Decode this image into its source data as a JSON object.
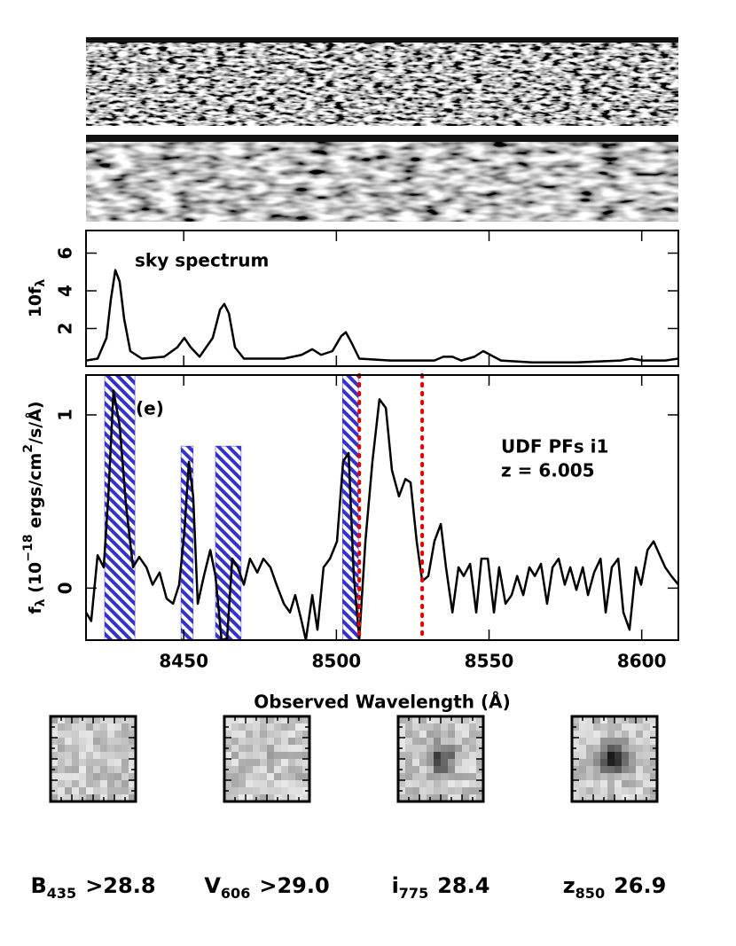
{
  "chart_data": [
    {
      "type": "line",
      "annotations": [
        {
          "text": "sky spectrum",
          "color": "#e00000"
        }
      ],
      "ylabel_parts": [
        {
          "text": "10f"
        },
        {
          "text": "λ",
          "sub": true
        }
      ],
      "x": [
        8418.0,
        8421.8,
        8424.7,
        8426.1,
        8427.6,
        8429.0,
        8430.5,
        8432.5,
        8436.3,
        8443.6,
        8447.9,
        8450.2,
        8452.3,
        8455.2,
        8459.5,
        8461.9,
        8463.3,
        8464.8,
        8466.8,
        8469.7,
        8482.8,
        8488.6,
        8492.1,
        8495.0,
        8498.7,
        8501.6,
        8503.1,
        8505.1,
        8507.5,
        8517.6,
        8532.1,
        8535.0,
        8538.0,
        8540.9,
        8545.2,
        8548.1,
        8550.4,
        8553.9,
        8564.1,
        8578.6,
        8593.1,
        8596.6,
        8600.4,
        8607.7,
        8612.0
      ],
      "values": [
        0.3,
        0.4,
        1.5,
        3.5,
        5.1,
        4.5,
        2.5,
        0.8,
        0.4,
        0.5,
        1.0,
        1.5,
        1.0,
        0.5,
        1.5,
        3.0,
        3.3,
        2.8,
        1.0,
        0.4,
        0.4,
        0.6,
        0.9,
        0.6,
        0.8,
        1.6,
        1.8,
        1.2,
        0.4,
        0.3,
        0.3,
        0.5,
        0.5,
        0.3,
        0.5,
        0.8,
        0.6,
        0.3,
        0.2,
        0.2,
        0.3,
        0.4,
        0.3,
        0.3,
        0.4
      ],
      "color": "#000000",
      "xlim": [
        8418,
        8612
      ],
      "ylim": [
        0,
        7.2
      ],
      "xticks": [
        8450,
        8500,
        8550,
        8600
      ],
      "xtick_labels": false,
      "yticks": [
        2,
        4,
        6
      ]
    },
    {
      "type": "line",
      "annotations": [
        {
          "text": "(e)",
          "color": "#e00000"
        },
        {
          "text": "UDF PFs i1",
          "color": "#e00000"
        },
        {
          "text": "z = 6.005",
          "color": "#e00000"
        }
      ],
      "ylabel_parts": [
        {
          "text": "f"
        },
        {
          "text": "λ",
          "sub": true
        },
        {
          "text": " (10"
        },
        {
          "text": "−18",
          "sup": true
        },
        {
          "text": " ergs/cm"
        },
        {
          "text": "2",
          "sup": true
        },
        {
          "text": "/s/Å)"
        }
      ],
      "xlabel": "Observed Wavelength (Å)",
      "x": [
        8418.0,
        8419.7,
        8421.8,
        8423.8,
        8425.3,
        8427.0,
        8429.0,
        8431.1,
        8433.4,
        8435.4,
        8437.8,
        8439.8,
        8442.1,
        8444.4,
        8446.5,
        8448.5,
        8450.2,
        8451.7,
        8453.1,
        8454.6,
        8456.6,
        8458.7,
        8460.4,
        8462.4,
        8464.2,
        8465.9,
        8467.7,
        8469.7,
        8471.7,
        8474.1,
        8476.1,
        8478.4,
        8480.4,
        8482.8,
        8484.8,
        8486.5,
        8488.6,
        8490.0,
        8492.1,
        8493.8,
        8495.8,
        8497.9,
        8500.2,
        8502.2,
        8504.0,
        8505.7,
        8507.5,
        8509.5,
        8511.8,
        8514.1,
        8516.2,
        8518.2,
        8520.5,
        8522.6,
        8524.3,
        8526.3,
        8528.1,
        8530.1,
        8532.1,
        8534.2,
        8535.9,
        8538.0,
        8540.0,
        8541.7,
        8543.8,
        8545.8,
        8547.5,
        8549.6,
        8551.6,
        8553.3,
        8555.4,
        8557.4,
        8559.2,
        8561.2,
        8563.2,
        8565.0,
        8567.0,
        8569.0,
        8570.8,
        8572.8,
        8574.8,
        8576.6,
        8578.6,
        8580.7,
        8582.4,
        8584.4,
        8586.5,
        8588.2,
        8590.2,
        8592.3,
        8594.0,
        8596.0,
        8598.1,
        8599.8,
        8601.9,
        8603.9,
        8605.9,
        8607.7,
        8609.7,
        8612.0
      ],
      "values": [
        -0.14,
        -0.19,
        0.19,
        0.12,
        0.53,
        1.14,
        0.94,
        0.48,
        0.12,
        0.18,
        0.12,
        0.02,
        0.09,
        -0.06,
        -0.09,
        0.02,
        0.32,
        0.73,
        0.53,
        -0.09,
        0.07,
        0.22,
        0.07,
        -0.3,
        -0.29,
        0.17,
        0.12,
        0.02,
        0.17,
        0.09,
        0.17,
        0.12,
        0.02,
        -0.09,
        -0.14,
        -0.04,
        -0.19,
        -0.3,
        -0.04,
        -0.24,
        0.12,
        0.17,
        0.27,
        0.73,
        0.78,
        0.07,
        -0.29,
        0.27,
        0.73,
        1.09,
        1.04,
        0.68,
        0.53,
        0.63,
        0.61,
        0.27,
        0.04,
        0.07,
        0.27,
        0.37,
        0.12,
        -0.14,
        0.12,
        0.07,
        0.14,
        -0.14,
        0.17,
        0.17,
        -0.14,
        0.12,
        -0.09,
        -0.04,
        0.07,
        -0.04,
        0.12,
        0.07,
        0.14,
        -0.09,
        0.12,
        0.17,
        0.02,
        0.12,
        -0.01,
        0.12,
        -0.04,
        0.09,
        0.17,
        -0.14,
        0.12,
        0.17,
        -0.14,
        -0.24,
        0.12,
        0.02,
        0.22,
        0.27,
        0.19,
        0.12,
        0.07,
        0.02
      ],
      "color": "#000000",
      "bands": [
        {
          "x0": 8424.1,
          "x1": 8434.0,
          "top": 1.23
        },
        {
          "x0": 8449.1,
          "x1": 8453.1,
          "top": 0.82
        },
        {
          "x0": 8460.4,
          "x1": 8468.8,
          "top": 0.82
        },
        {
          "x0": 8502.0,
          "x1": 8507.2,
          "top": 1.23
        }
      ],
      "band_color": "#3333cc",
      "vlines": [
        8507.5,
        8528.1
      ],
      "vline_color": "#e00000",
      "xlim": [
        8418,
        8612
      ],
      "ylim": [
        -0.3,
        1.23
      ],
      "xticks": [
        8450,
        8500,
        8550,
        8600
      ],
      "xtick_labels": true,
      "yticks": [
        0,
        1
      ]
    }
  ],
  "stamps": [
    {
      "band": "B",
      "sub": "435",
      "mag": ">28.8"
    },
    {
      "band": "V",
      "sub": "606",
      "mag": ">29.0"
    },
    {
      "band": "i",
      "sub": "775",
      "mag": "28.4"
    },
    {
      "band": "z",
      "sub": "850",
      "mag": "26.9"
    }
  ]
}
